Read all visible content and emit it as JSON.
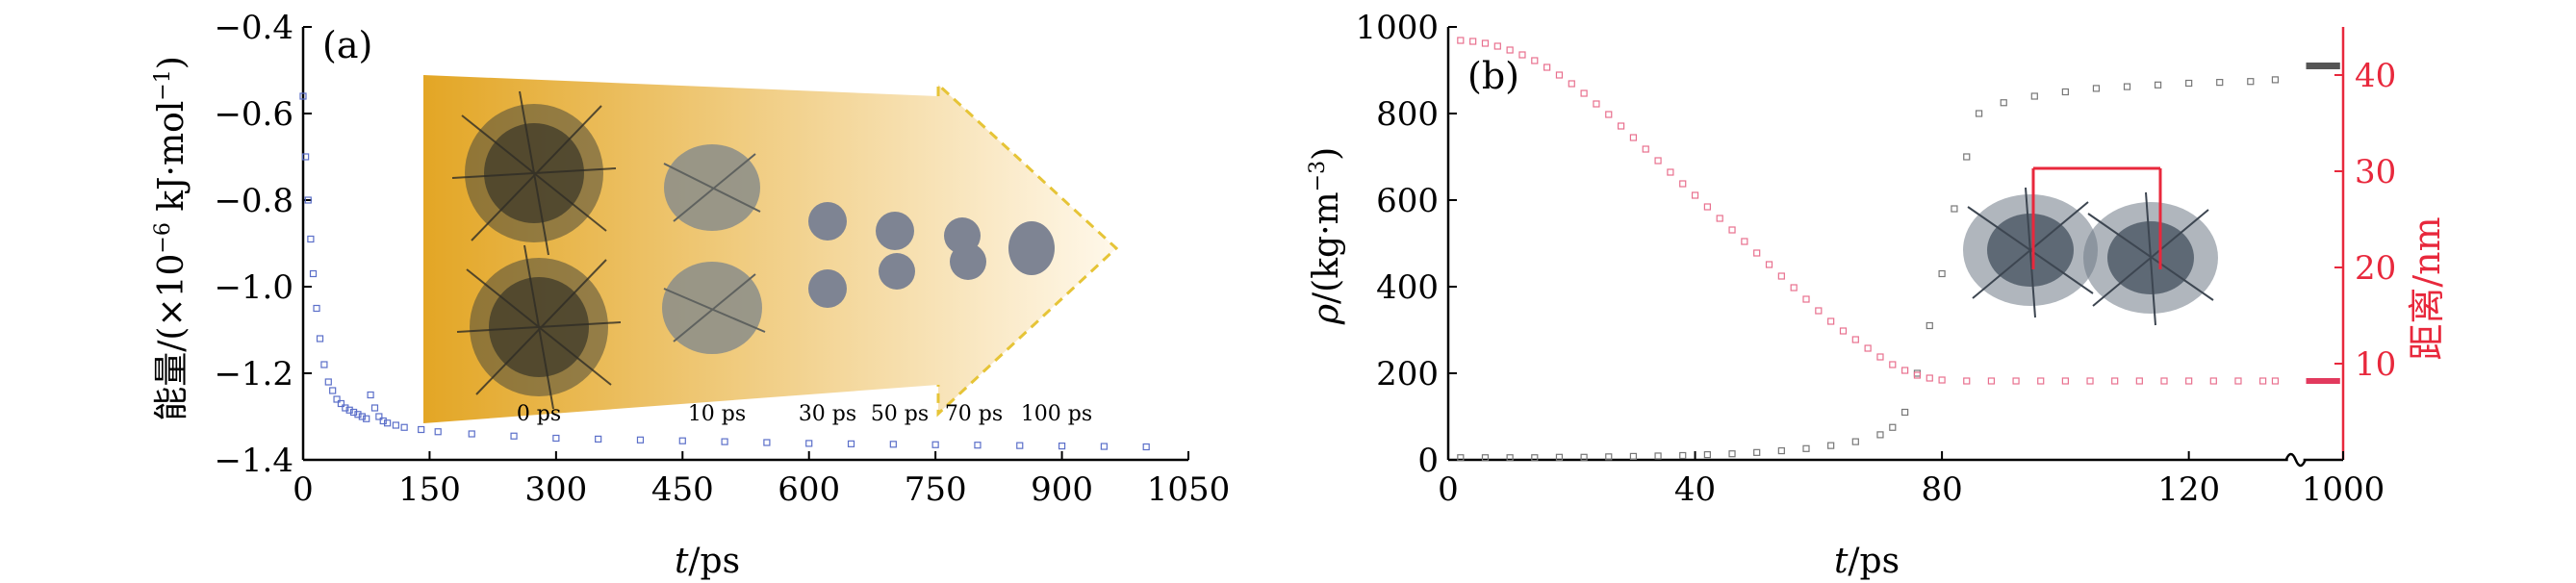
{
  "chart_data": [
    {
      "panel": "(a)",
      "type": "scatter",
      "xlabel": "t/ps",
      "xlabel_parts": [
        "t",
        "/ps"
      ],
      "ylabel": "能量/(×10⁻⁶ kJ·mol⁻¹)",
      "ylabel_parts": [
        "能量/(×10",
        "−6",
        " kJ·mol",
        "−1",
        ")"
      ],
      "xlim": [
        0,
        1050
      ],
      "ylim": [
        -1.4,
        -0.4
      ],
      "xticks": [
        "0",
        "150",
        "300",
        "450",
        "600",
        "750",
        "900",
        "1050"
      ],
      "yticks": [
        "−0.4",
        "−0.6",
        "−0.8",
        "−1.0",
        "−1.2",
        "−1.4"
      ],
      "xtick_values": [
        0,
        150,
        300,
        450,
        600,
        750,
        900,
        1050
      ],
      "ytick_values": [
        -0.4,
        -0.6,
        -0.8,
        -1.0,
        -1.2,
        -1.4
      ],
      "marker_color": "#5b6fc9",
      "x": [
        0,
        3,
        6,
        9,
        12,
        16,
        20,
        25,
        30,
        35,
        40,
        45,
        50,
        55,
        60,
        65,
        70,
        75,
        80,
        85,
        90,
        95,
        100,
        110,
        120,
        140,
        160,
        200,
        250,
        300,
        350,
        400,
        450,
        500,
        550,
        600,
        650,
        700,
        750,
        800,
        850,
        900,
        950,
        1000
      ],
      "y": [
        -0.56,
        -0.7,
        -0.8,
        -0.89,
        -0.97,
        -1.05,
        -1.12,
        -1.18,
        -1.22,
        -1.24,
        -1.26,
        -1.27,
        -1.28,
        -1.285,
        -1.29,
        -1.295,
        -1.3,
        -1.305,
        -1.25,
        -1.28,
        -1.3,
        -1.31,
        -1.315,
        -1.32,
        -1.325,
        -1.33,
        -1.335,
        -1.34,
        -1.345,
        -1.35,
        -1.352,
        -1.354,
        -1.356,
        -1.358,
        -1.36,
        -1.362,
        -1.363,
        -1.364,
        -1.365,
        -1.366,
        -1.367,
        -1.368,
        -1.369,
        -1.37
      ],
      "inset": {
        "time_labels": [
          "0 ps",
          "10 ps",
          "30 ps",
          "50 ps",
          "70 ps",
          "100 ps"
        ],
        "arrow_colors": [
          "#e3a625",
          "#fff8ea"
        ]
      }
    },
    {
      "panel": "(b)",
      "type": "scatter",
      "xlabel": "t/ps",
      "xlabel_parts": [
        "t",
        "/ps"
      ],
      "ylabel": "ρ/(kg·m⁻³)",
      "ylabel_parts": [
        "ρ",
        "/(kg·m",
        "−3",
        ")"
      ],
      "y2label": "距离/nm",
      "xlim": [
        0,
        145
      ],
      "ylim": [
        0,
        1000
      ],
      "y2lim": [
        0,
        45
      ],
      "xticks": [
        "0",
        "40",
        "80",
        "120",
        "1000"
      ],
      "xtick_values": [
        0,
        40,
        80,
        120,
        145
      ],
      "x_axis_break": true,
      "yticks": [
        "0",
        "200",
        "400",
        "600",
        "800",
        "1000"
      ],
      "ytick_values": [
        0,
        200,
        400,
        600,
        800,
        1000
      ],
      "y2ticks": [
        "10",
        "20",
        "30",
        "40"
      ],
      "y2tick_values": [
        10,
        20,
        30,
        40
      ],
      "series": [
        {
          "axis": "left",
          "color": "#777777",
          "x": [
            2,
            6,
            10,
            14,
            18,
            22,
            26,
            30,
            34,
            38,
            42,
            46,
            50,
            54,
            58,
            62,
            66,
            70,
            72,
            74,
            76,
            78,
            80,
            82,
            84,
            86,
            90,
            95,
            100,
            105,
            110,
            115,
            120,
            125,
            130,
            134
          ],
          "y": [
            5,
            5,
            5,
            5,
            6,
            6,
            7,
            8,
            9,
            10,
            12,
            14,
            17,
            21,
            26,
            33,
            42,
            58,
            75,
            110,
            200,
            310,
            430,
            580,
            700,
            800,
            825,
            840,
            850,
            858,
            862,
            866,
            870,
            872,
            874,
            878
          ]
        },
        {
          "axis": "right",
          "color": "#e8708e",
          "x": [
            2,
            4,
            6,
            8,
            10,
            12,
            14,
            16,
            18,
            20,
            22,
            24,
            26,
            28,
            30,
            32,
            34,
            36,
            38,
            40,
            42,
            44,
            46,
            48,
            50,
            52,
            54,
            56,
            58,
            60,
            62,
            64,
            66,
            68,
            70,
            72,
            74,
            76,
            78,
            80,
            84,
            88,
            92,
            96,
            100,
            104,
            108,
            112,
            116,
            120,
            124,
            128,
            132,
            134
          ],
          "y": [
            43.6,
            43.5,
            43.3,
            43.0,
            42.6,
            42.1,
            41.5,
            40.8,
            40.0,
            39.1,
            38.1,
            37.0,
            35.9,
            34.7,
            33.5,
            32.3,
            31.1,
            29.9,
            28.7,
            27.5,
            26.3,
            25.1,
            23.9,
            22.7,
            21.5,
            20.3,
            19.1,
            17.9,
            16.7,
            15.5,
            14.4,
            13.4,
            12.5,
            11.6,
            10.7,
            9.9,
            9.3,
            8.8,
            8.5,
            8.3,
            8.2,
            8.2,
            8.2,
            8.2,
            8.2,
            8.2,
            8.2,
            8.2,
            8.2,
            8.2,
            8.2,
            8.2,
            8.2,
            8.2
          ]
        }
      ],
      "end_markers": {
        "left_value": 910,
        "right_value": 8.2
      }
    }
  ]
}
